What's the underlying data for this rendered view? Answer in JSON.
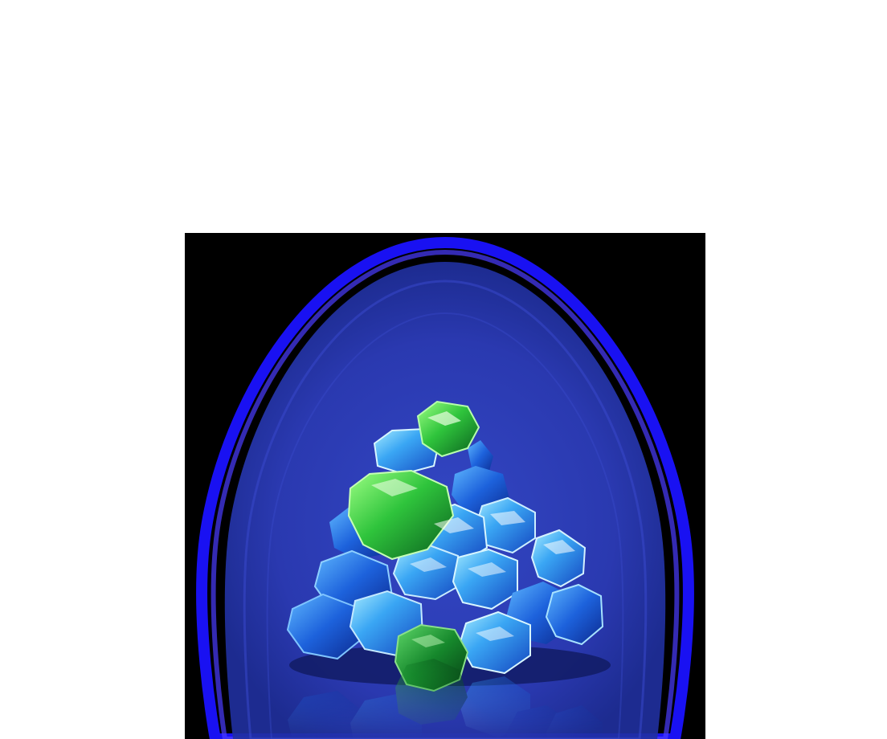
{
  "asset": {
    "icon": "gem-pile-icon",
    "background_color": "#000000",
    "page_color": "#ffffff",
    "glow_color": "#1a12ff",
    "aura_color": "#2f3fb8",
    "gem_colors": {
      "blue_light": "#6fd0ff",
      "blue_mid": "#2a8ef0",
      "blue_dark": "#1440b8",
      "green_light": "#7dff6a",
      "green_mid": "#2cc43a",
      "green_dark": "#0b6e22"
    }
  }
}
